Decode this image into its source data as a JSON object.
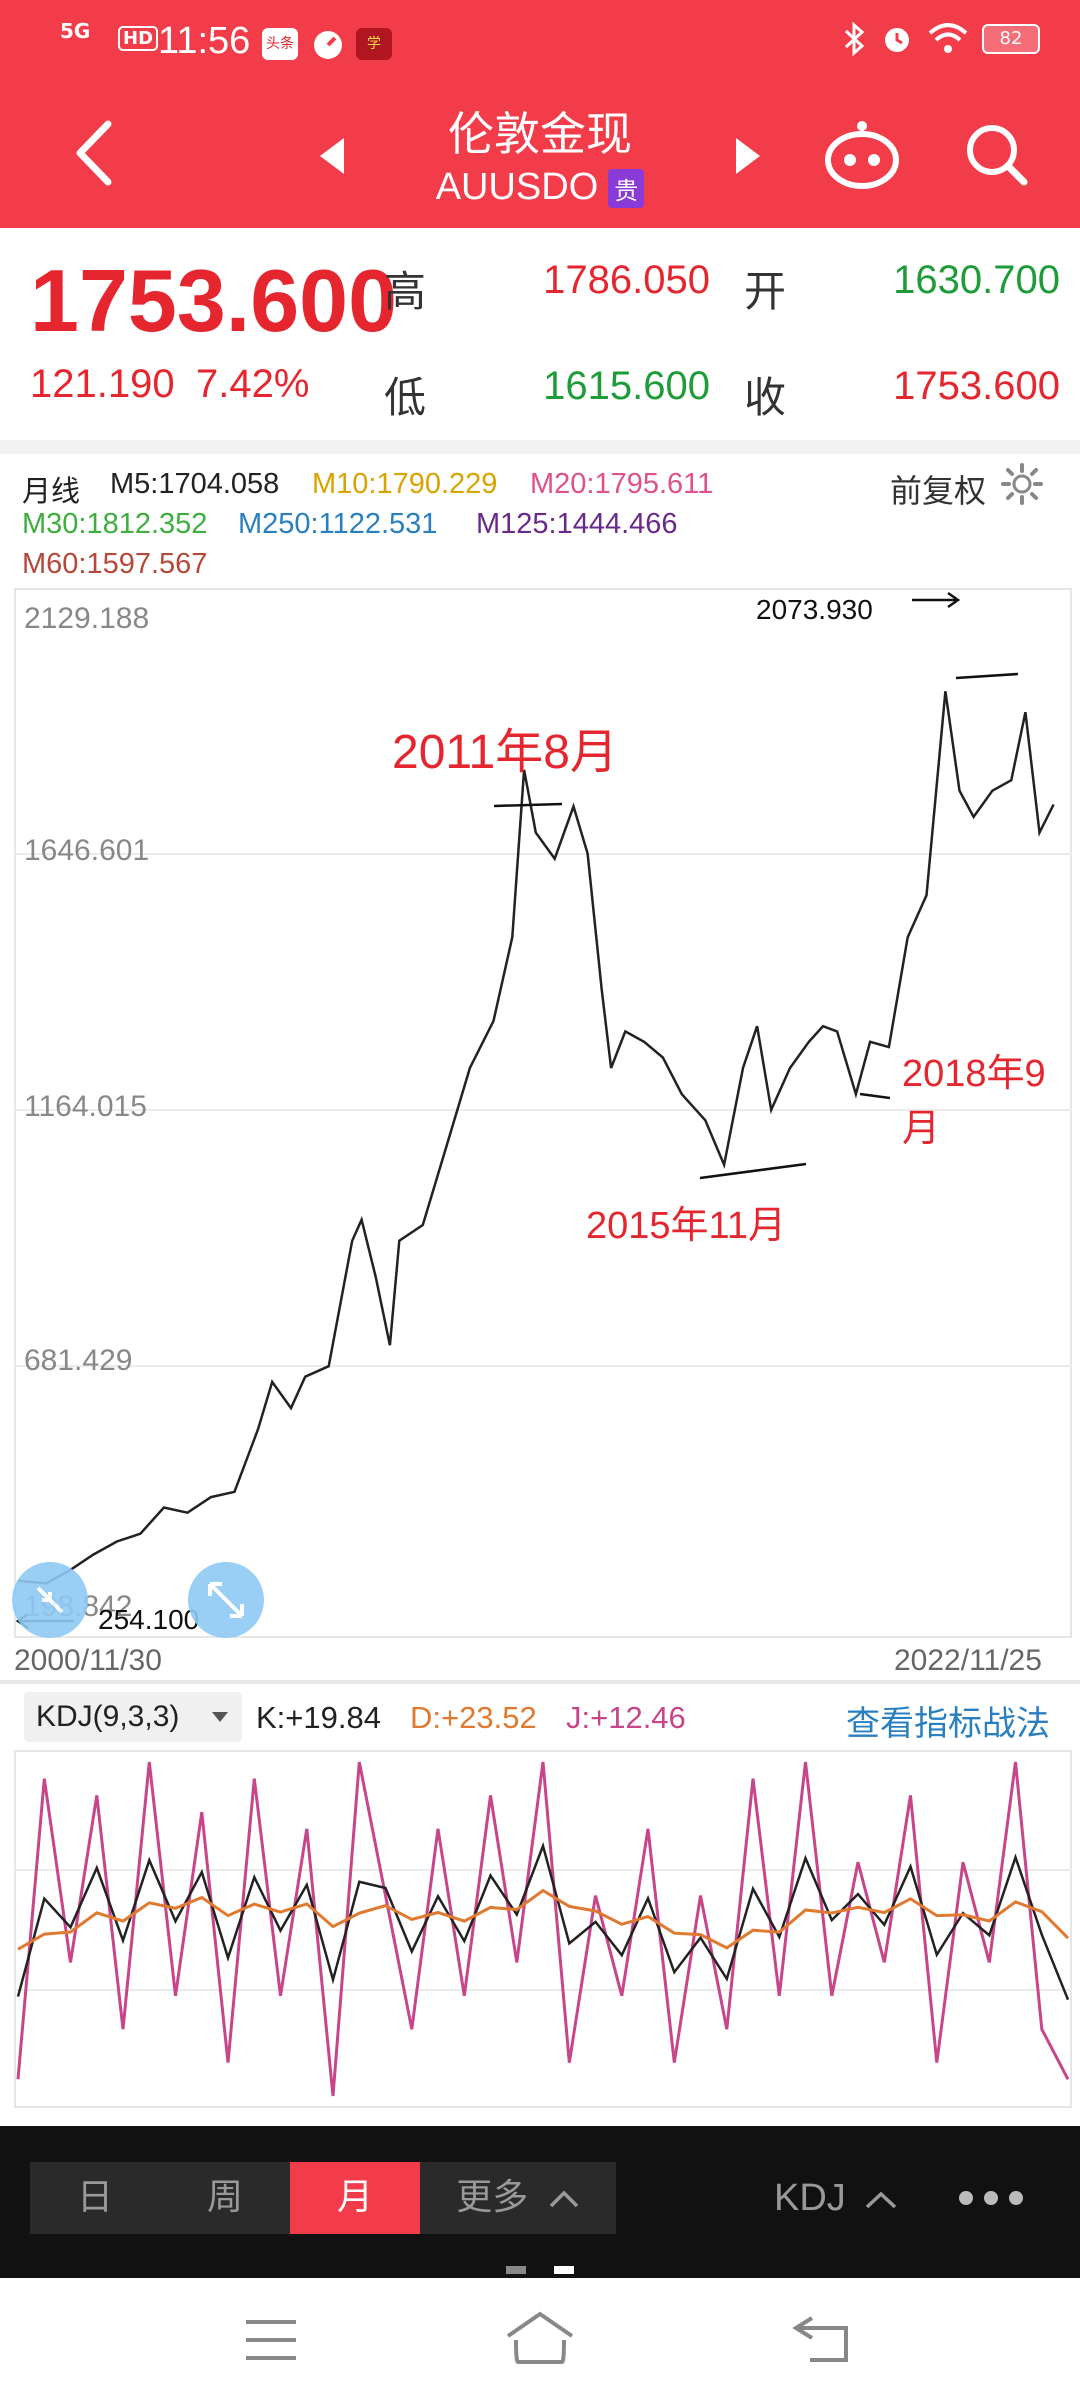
{
  "status_bar": {
    "network": "5G",
    "hd": "HD",
    "time": "11:56",
    "app1": "头条",
    "app3": "学",
    "battery": "82"
  },
  "header": {
    "title": "伦敦金现",
    "subtitle": "AUUSDO",
    "tag": "贵"
  },
  "quote": {
    "price": "1753.600",
    "change": "121.190",
    "change_pct": "7.42%",
    "high_label": "高",
    "high": "1786.050",
    "open_label": "开",
    "open": "1630.700",
    "low_label": "低",
    "low": "1615.600",
    "close_label": "收",
    "close": "1753.600"
  },
  "chart": {
    "period": "月线",
    "adjust": "前复权",
    "ma": {
      "m5": "M5:1704.058",
      "m10": "M10:1790.229",
      "m20": "M20:1795.611",
      "m30": "M30:1812.352",
      "m250": "M250:1122.531",
      "m125": "M125:1444.466",
      "m60": "M60:1597.567"
    },
    "y_labels": [
      "2129.188",
      "1646.601",
      "1164.015",
      "681.429",
      "198.842"
    ],
    "date_start": "2000/11/30",
    "date_end": "2022/11/25",
    "max_label": "2073.930",
    "min_label": "254.100",
    "annotations": {
      "a1": "2011年8月",
      "a2": "2015年11月",
      "a3": "2018年9月"
    },
    "colors": {
      "m5": "#222222",
      "m10": "#d9a400",
      "m20": "#e0508a",
      "m30": "#3fae3f",
      "m250": "#2a7fc0",
      "m125": "#6a2a8a",
      "m60": "#b5483a"
    }
  },
  "chart_data": {
    "type": "line",
    "x_range": [
      "2000/11/30",
      "2022/11/25"
    ],
    "ylim": [
      198.842,
      2129.188
    ],
    "x": [
      2000.9,
      2001.5,
      2002.0,
      2002.5,
      2003.0,
      2003.5,
      2004.0,
      2004.5,
      2005.0,
      2005.5,
      2006.0,
      2006.3,
      2006.7,
      2007.0,
      2007.5,
      2008.0,
      2008.2,
      2008.5,
      2008.8,
      2009.0,
      2009.5,
      2010.0,
      2010.5,
      2011.0,
      2011.4,
      2011.65,
      2011.9,
      2012.3,
      2012.7,
      2013.0,
      2013.3,
      2013.5,
      2013.8,
      2014.2,
      2014.6,
      2015.0,
      2015.5,
      2015.9,
      2016.3,
      2016.6,
      2016.9,
      2017.3,
      2017.7,
      2018.0,
      2018.3,
      2018.7,
      2019.0,
      2019.4,
      2019.8,
      2020.2,
      2020.6,
      2020.9,
      2021.2,
      2021.6,
      2022.0,
      2022.3,
      2022.6,
      2022.9
    ],
    "close": [
      270,
      265,
      290,
      320,
      345,
      360,
      410,
      400,
      430,
      440,
      560,
      650,
      600,
      660,
      680,
      920,
      960,
      850,
      720,
      920,
      950,
      1100,
      1250,
      1340,
      1500,
      1820,
      1700,
      1650,
      1750,
      1660,
      1400,
      1250,
      1320,
      1300,
      1270,
      1200,
      1150,
      1065,
      1250,
      1330,
      1170,
      1250,
      1300,
      1330,
      1320,
      1200,
      1300,
      1290,
      1500,
      1580,
      1970,
      1780,
      1730,
      1780,
      1800,
      1930,
      1700,
      1753.6
    ],
    "kdj": {
      "params": "KDJ(9,3,3)",
      "K": 19.84,
      "D": 23.52,
      "J": 12.46,
      "J_series": [
        5,
        95,
        40,
        90,
        20,
        100,
        30,
        85,
        10,
        95,
        30,
        80,
        0,
        100,
        60,
        20,
        80,
        30,
        90,
        40,
        100,
        10,
        60,
        30,
        80,
        10,
        60,
        20,
        95,
        30,
        100,
        30,
        70,
        40,
        90,
        10,
        70,
        40,
        100,
        20,
        5
      ]
    }
  },
  "kdj_panel": {
    "selector": "KDJ(9,3,3)",
    "k": "K:+19.84",
    "d": "D:+23.52",
    "j": "J:+12.46",
    "link": "查看指标战法"
  },
  "bottom_bar": {
    "tab_day": "日",
    "tab_week": "周",
    "tab_month": "月",
    "tab_more": "更多",
    "indicator": "KDJ"
  }
}
